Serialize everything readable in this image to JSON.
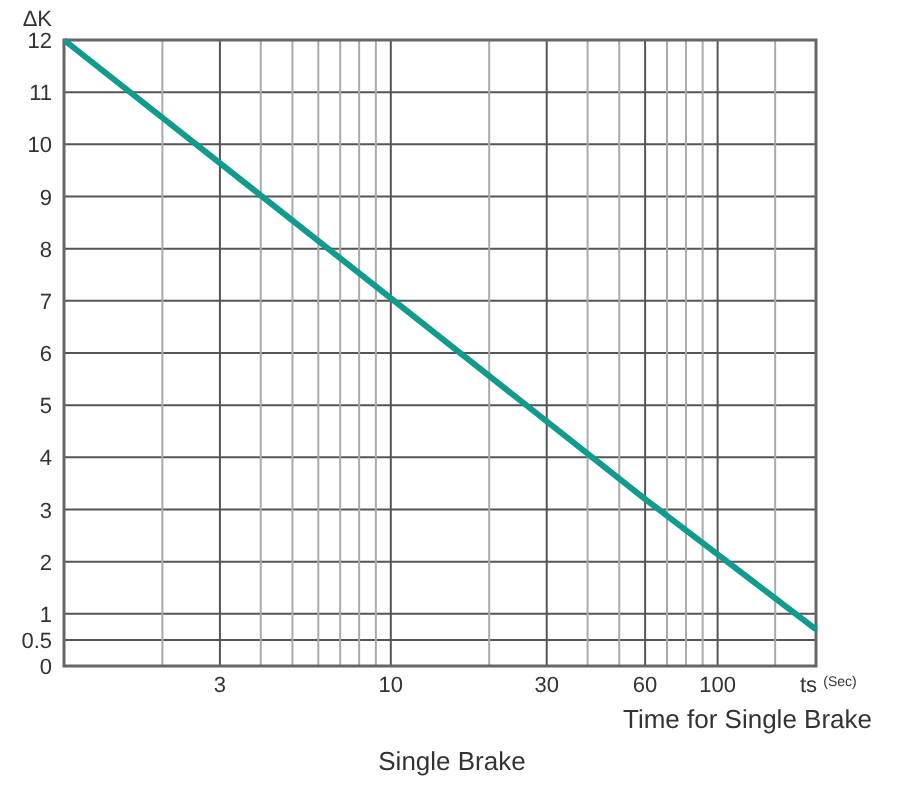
{
  "chart_data": {
    "type": "line",
    "title": "Single Brake",
    "ylabel": "ΔK",
    "xlabel": "ts $^{(Sec)}$",
    "annotations": [
      "Time for Single Brake"
    ],
    "x": [
      1,
      60,
      200
    ],
    "series": [
      {
        "color": "#129a8c",
        "values": [
          12,
          3.2,
          0.7
        ]
      }
    ],
    "log": "x",
    "xlim": [
      1,
      200
    ],
    "xticks": [
      {
        "value": 2,
        "label": null
      },
      3,
      {
        "value": 4,
        "label": null
      },
      {
        "value": 5,
        "label": null
      },
      {
        "value": 6,
        "label": null
      },
      {
        "value": 7,
        "label": null
      },
      {
        "value": 8,
        "label": null
      },
      {
        "value": 9,
        "label": null
      },
      10,
      {
        "value": 20,
        "label": null
      },
      30,
      {
        "value": 40,
        "label": null
      },
      {
        "value": 50,
        "label": null
      },
      60,
      {
        "value": 70,
        "label": null
      },
      {
        "value": 80,
        "label": null
      },
      {
        "value": 90,
        "label": null
      },
      100,
      {
        "value": 150,
        "label": null
      }
    ],
    "ylim": [
      0,
      12
    ],
    "yticks": [
      12,
      11,
      10,
      9,
      8,
      7,
      6,
      5,
      4,
      3,
      2,
      1,
      0.5,
      0
    ],
    "grid": true,
    "marker": "none",
    "line_style": "solid"
  }
}
